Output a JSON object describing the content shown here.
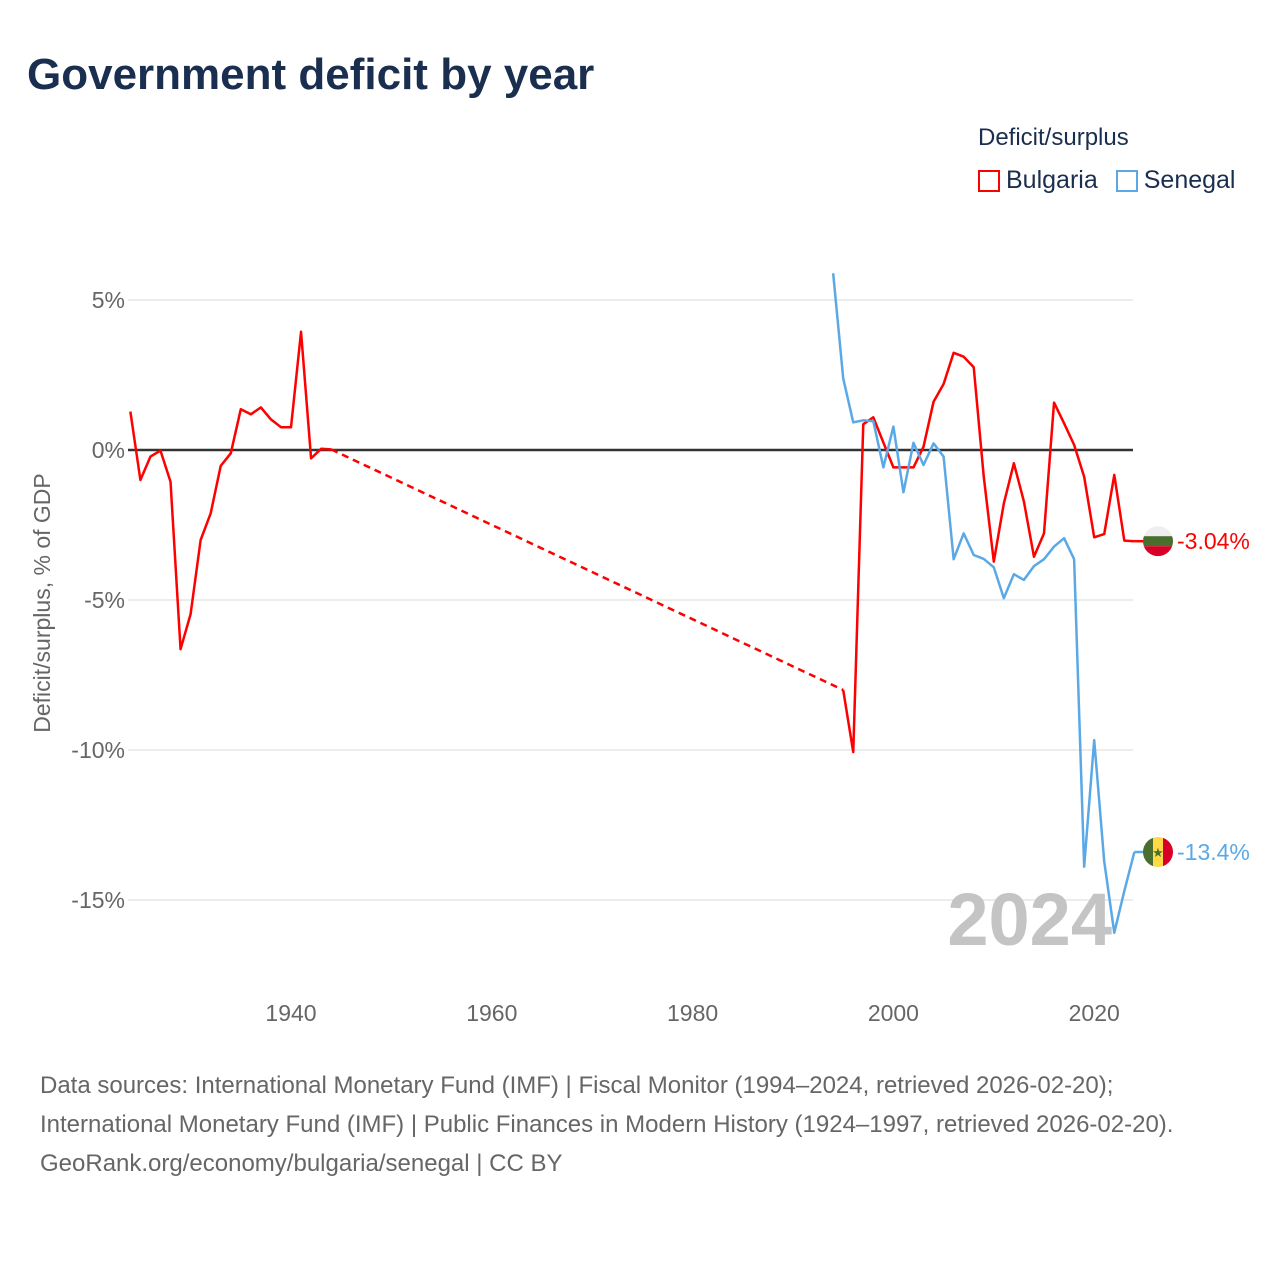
{
  "title": "Government deficit by year",
  "legend": {
    "title": "Deficit/surplus",
    "items": [
      {
        "label": "Bulgaria",
        "color": "#ff0000"
      },
      {
        "label": "Senegal",
        "color": "#5aa9e6"
      }
    ]
  },
  "chart_data": {
    "type": "line",
    "title": "Government deficit by year",
    "xlabel": "",
    "ylabel": "Deficit/surplus, % of GDP",
    "xlim": [
      1924,
      2024
    ],
    "ylim": [
      -17,
      6
    ],
    "x_ticks": [
      "1940",
      "1960",
      "1980",
      "2000",
      "2020"
    ],
    "x_tick_values": [
      1940,
      1960,
      1980,
      2000,
      2020
    ],
    "y_ticks": [
      "5%",
      "0%",
      "-5%",
      "-10%",
      "-15%"
    ],
    "y_tick_values": [
      5,
      0,
      -5,
      -10,
      -15
    ],
    "grid": true,
    "year_watermark": "2024",
    "series": [
      {
        "name": "Bulgaria",
        "color": "#ff0000",
        "end_label": "-3.04%",
        "gap": {
          "from": 1944,
          "to": 1995,
          "style": "dashed"
        },
        "x": [
          1924,
          1925,
          1926,
          1927,
          1928,
          1929,
          1930,
          1931,
          1932,
          1933,
          1934,
          1935,
          1936,
          1937,
          1938,
          1939,
          1940,
          1941,
          1942,
          1943,
          1944,
          1995,
          1996,
          1997,
          1998,
          1999,
          2000,
          2001,
          2002,
          2003,
          2004,
          2005,
          2006,
          2007,
          2008,
          2009,
          2010,
          2011,
          2012,
          2013,
          2014,
          2015,
          2016,
          2017,
          2018,
          2019,
          2020,
          2021,
          2022,
          2023,
          2024
        ],
        "y": [
          1.28,
          -1.0,
          -0.22,
          -0.02,
          -1.06,
          -6.64,
          -5.47,
          -3.0,
          -2.11,
          -0.53,
          -0.11,
          1.36,
          1.19,
          1.42,
          1.02,
          0.76,
          0.76,
          3.94,
          -0.28,
          0.04,
          0.02,
          -8.0,
          -10.07,
          0.86,
          1.09,
          0.25,
          -0.58,
          -0.58,
          -0.58,
          0.11,
          1.61,
          2.2,
          3.24,
          3.11,
          2.76,
          -0.89,
          -3.72,
          -1.78,
          -0.44,
          -1.72,
          -3.56,
          -2.78,
          1.58,
          0.89,
          0.17,
          -0.89,
          -2.91,
          -2.8,
          -0.83,
          -3.02,
          -3.04
        ]
      },
      {
        "name": "Senegal",
        "color": "#5aa9e6",
        "end_label": "-13.4%",
        "x": [
          1994,
          1995,
          1996,
          1997,
          1998,
          1999,
          2000,
          2001,
          2002,
          2003,
          2004,
          2005,
          2006,
          2007,
          2008,
          2009,
          2010,
          2011,
          2012,
          2013,
          2014,
          2015,
          2016,
          2017,
          2018,
          2019,
          2020,
          2021,
          2022,
          2023,
          2024
        ],
        "y": [
          5.89,
          2.39,
          0.92,
          0.99,
          0.96,
          -0.58,
          0.78,
          -1.41,
          0.24,
          -0.5,
          0.22,
          -0.22,
          -3.64,
          -2.78,
          -3.5,
          -3.63,
          -3.91,
          -4.94,
          -4.14,
          -4.33,
          -3.87,
          -3.64,
          -3.22,
          -2.94,
          -3.64,
          -13.89,
          -9.67,
          -13.72,
          -16.09,
          -14.7,
          -13.4
        ]
      }
    ]
  },
  "footer": {
    "sources": "Data sources: International Monetary Fund (IMF) | Fiscal Monitor (1994–2024, retrieved 2026-02-20); International Monetary Fund (IMF) | Public Finances in Modern History (1924–1997, retrieved 2026-02-20).",
    "credit": "GeoRank.org/economy/bulgaria/senegal | CC BY"
  }
}
